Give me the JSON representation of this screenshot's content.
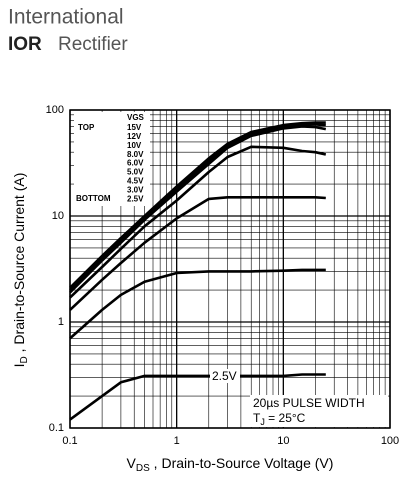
{
  "header": {
    "company": "International",
    "logo": "IOR",
    "brand": "Rectifier"
  },
  "chart_data": {
    "type": "line",
    "log_x": true,
    "log_y": true,
    "grid": true,
    "color": "#000000",
    "xlabel": {
      "main": "V",
      "sub": "DS",
      "rest": " , Drain-to-Source Voltage (V)"
    },
    "ylabel": {
      "main": "I",
      "sub": "D",
      "rest": " , Drain-to-Source Current (A)"
    },
    "xlim": [
      0.1,
      100
    ],
    "ylim": [
      0.1,
      100
    ],
    "xticks": [
      0.1,
      1,
      10,
      100
    ],
    "yticks": [
      0.1,
      1,
      10,
      100
    ],
    "legend": {
      "title": "VGS",
      "top": "TOP",
      "bottom": "BOTTOM",
      "labels": [
        "15V",
        "12V",
        "10V",
        "8.0V",
        "6.0V",
        "5.0V",
        "4.5V",
        "3.0V",
        "2.5V"
      ]
    },
    "annotations": {
      "curve_label": "2.5V",
      "pulse": "20µs PULSE WIDTH",
      "tj_main": "T",
      "tj_sub": "J",
      "tj_rest": " = 25°C"
    },
    "x": [
      0.1,
      0.2,
      0.3,
      0.5,
      1,
      2,
      3,
      5,
      10,
      15,
      20,
      25
    ],
    "series": [
      {
        "values": [
          2.1,
          4.2,
          6.2,
          10,
          19,
          35,
          48,
          62,
          72,
          75,
          76,
          76
        ]
      },
      {
        "values": [
          2.0,
          4.0,
          5.9,
          9.6,
          18,
          33,
          46,
          60,
          70,
          73,
          73,
          72
        ]
      },
      {
        "values": [
          1.9,
          3.8,
          5.6,
          9.2,
          17,
          31,
          44,
          57,
          67,
          70,
          69,
          66
        ]
      },
      {
        "values": [
          1.7,
          3.3,
          4.9,
          8,
          14,
          26,
          36,
          45,
          44,
          41,
          40,
          38
        ]
      },
      {
        "values": [
          1.3,
          2.5,
          3.6,
          5.6,
          9.5,
          14.5,
          15,
          15,
          15,
          15,
          15,
          14.8
        ]
      },
      {
        "values": [
          0.7,
          1.3,
          1.8,
          2.4,
          2.9,
          3.0,
          3.0,
          3.0,
          3.05,
          3.1,
          3.1,
          3.1
        ]
      },
      {
        "values": [
          0.12,
          0.2,
          0.27,
          0.31,
          0.31,
          0.31,
          0.31,
          0.31,
          0.31,
          0.32,
          0.32,
          0.32
        ]
      }
    ]
  }
}
